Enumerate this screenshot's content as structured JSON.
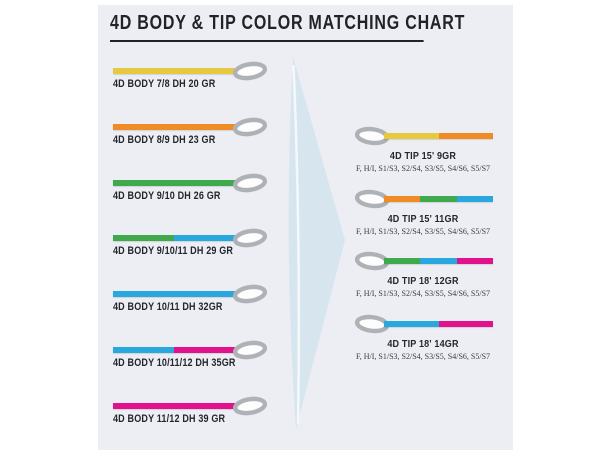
{
  "title": "4D BODY & TIP COLOR MATCHING CHART",
  "colors": {
    "yellow": "#e6c93f",
    "orange": "#f08c26",
    "green": "#3fa94c",
    "blue": "#29a8e0",
    "magenta": "#e2118c",
    "panel_bg": "#eceef3",
    "arrow_fill": "#d7e5ef",
    "loop_gray": "#aeb2b6",
    "text_dark": "#23262b"
  },
  "icons": {
    "loop": "welded-loop-icon",
    "arrow": "flow-arrow-icon"
  },
  "bodies": [
    {
      "label": "4D BODY 7/8 DH 20 GR",
      "segments": [
        "yellow"
      ]
    },
    {
      "label": "4D BODY 8/9 DH 23 GR",
      "segments": [
        "orange"
      ]
    },
    {
      "label": "4D BODY 9/10 DH 26 GR",
      "segments": [
        "green"
      ]
    },
    {
      "label": "4D BODY 9/10/11 DH 29 GR",
      "segments": [
        "green",
        "blue"
      ]
    },
    {
      "label": "4D BODY 10/11 DH 32GR",
      "segments": [
        "blue"
      ]
    },
    {
      "label": "4D BODY 10/11/12 DH 35GR",
      "segments": [
        "blue",
        "magenta"
      ]
    },
    {
      "label": "4D BODY 11/12 DH 39 GR",
      "segments": [
        "magenta"
      ]
    }
  ],
  "tips": [
    {
      "label": "4D TIP 15' 9GR",
      "sink_rates": "F, H/I, S1/S3, S2/S4, S3/S5, S4/S6, S5/S7",
      "segments": [
        "yellow",
        "orange"
      ]
    },
    {
      "label": "4D TIP 15' 11GR",
      "sink_rates": "F, H/I, S1/S3, S2/S4, S3/S5, S4/S6, S5/S7",
      "segments": [
        "orange",
        "green",
        "blue"
      ]
    },
    {
      "label": "4D TIP 18' 12GR",
      "sink_rates": "F, H/I, S1/S3, S2/S4, S3/S5, S4/S6, S5/S7",
      "segments": [
        "green",
        "blue",
        "magenta"
      ]
    },
    {
      "label": "4D TIP 18' 14GR",
      "sink_rates": "F, H/I, S1/S3, S2/S4, S3/S5, S4/S6, S5/S7",
      "segments": [
        "blue",
        "magenta"
      ]
    }
  ]
}
